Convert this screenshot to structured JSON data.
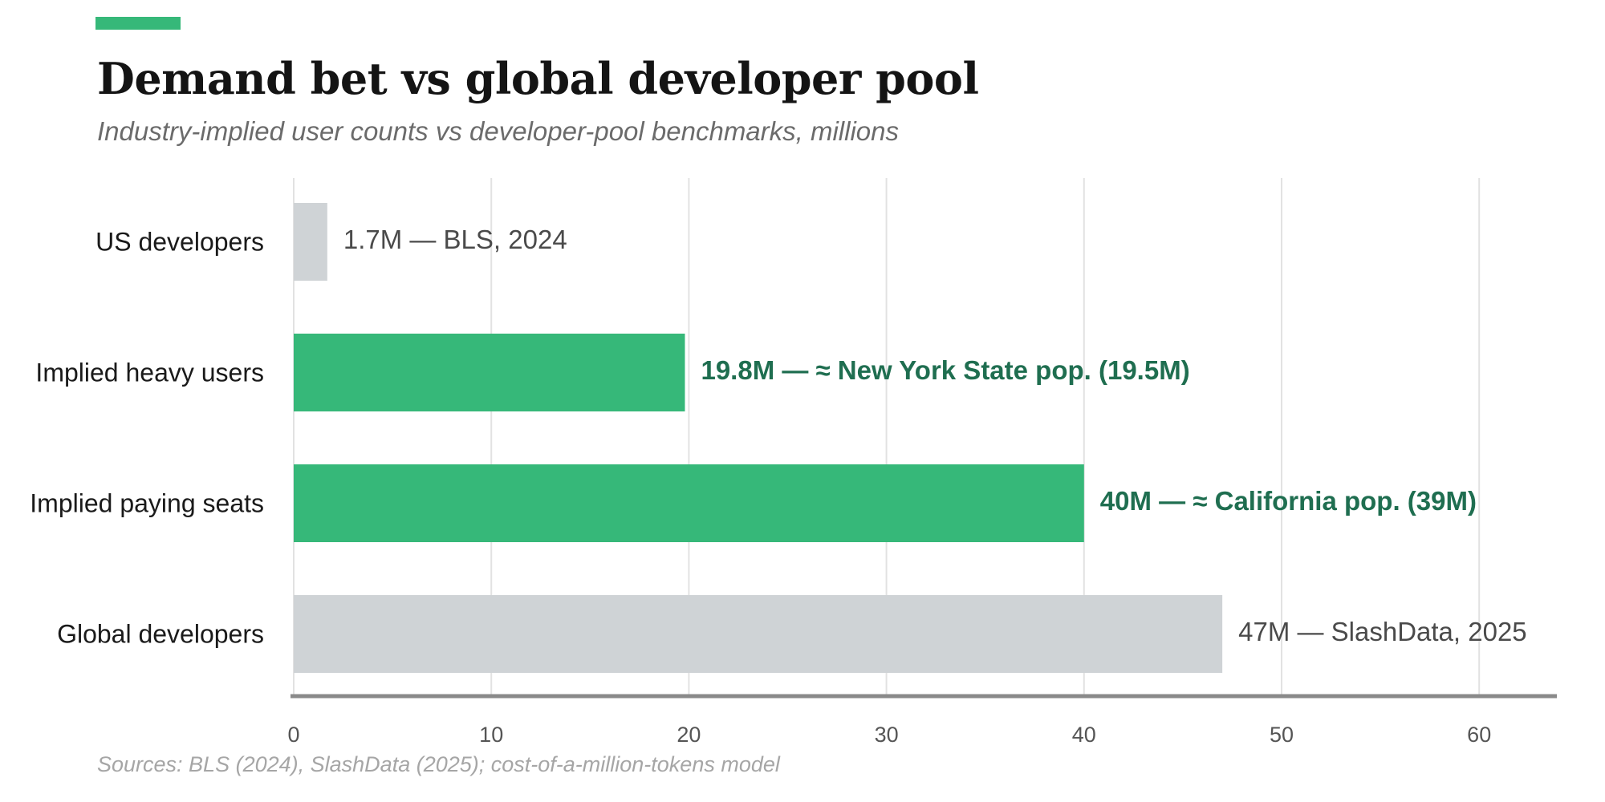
{
  "header": {
    "title": "Demand bet vs global developer pool",
    "subtitle": "Industry-implied user counts vs developer-pool benchmarks, millions"
  },
  "footer": {
    "source": "Sources: BLS (2024), SlashData (2025); cost-of-a-million-tokens model"
  },
  "colors": {
    "accent": "#36b879",
    "highlight_label": "#1f6e50",
    "benchmark_bar": "#cfd3d6",
    "benchmark_label": "#4a4a4a",
    "gridline": "#e2e2e2",
    "axis": "#8a8a8a"
  },
  "chart_data": {
    "type": "bar",
    "orientation": "horizontal",
    "categories": [
      "US developers",
      "Implied heavy users",
      "Implied paying seats",
      "Global developers"
    ],
    "values": [
      1.7,
      19.8,
      40,
      47
    ],
    "highlight": [
      false,
      true,
      true,
      false
    ],
    "data_labels": [
      "1.7M — BLS, 2024",
      "19.8M — ≈ New York State pop. (19.5M)",
      "40M — ≈ California pop. (39M)",
      "47M — SlashData, 2025"
    ],
    "xlim": [
      0,
      64
    ],
    "xticks": [
      0,
      10,
      20,
      30,
      40,
      50,
      60
    ],
    "grid": true,
    "xlabel": "",
    "ylabel": ""
  }
}
